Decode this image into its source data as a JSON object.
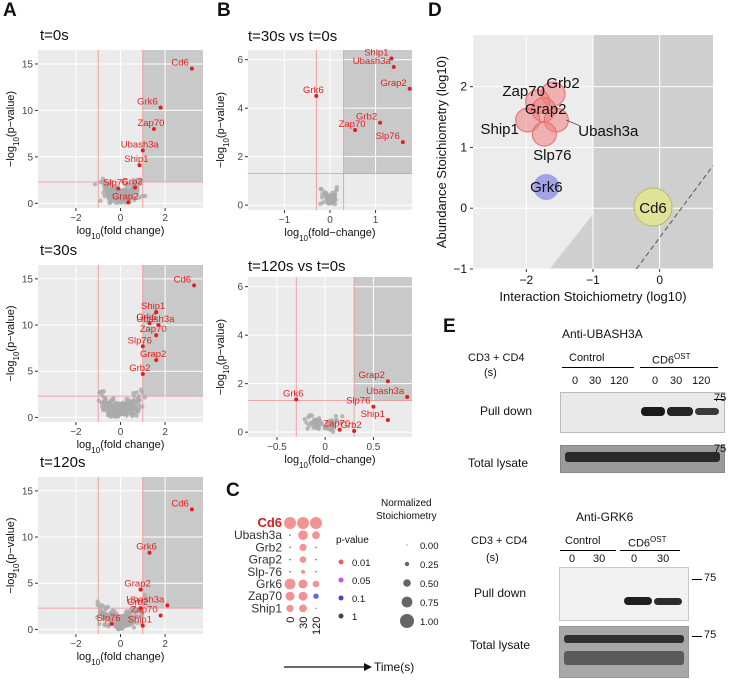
{
  "panels": {
    "A": "A",
    "B": "B",
    "C": "C",
    "D": "D",
    "E": "E"
  },
  "chart_data": [
    {
      "id": "A1",
      "type": "scatter",
      "title": "t=0s",
      "xlabel": "log10(fold change)",
      "ylabel": "−log10(p−value)",
      "xlim": [
        -3.7,
        3.7
      ],
      "ylim": [
        -0.5,
        16.5
      ],
      "xticks": [
        -2,
        0,
        2
      ],
      "yticks": [
        0,
        5,
        10,
        15
      ],
      "thresholds": {
        "x": [
          -1,
          1
        ],
        "y": 2.3
      },
      "shade": [
        1.0,
        3.7,
        2.3,
        16.5
      ],
      "labeled_points": [
        {
          "label": "Cd6",
          "x": 3.2,
          "y": 14.5
        },
        {
          "label": "Grk6",
          "x": 1.8,
          "y": 10.3
        },
        {
          "label": "Zap70",
          "x": 1.5,
          "y": 8.0
        },
        {
          "label": "Ubash3a",
          "x": 1.0,
          "y": 5.7
        },
        {
          "label": "Ship1",
          "x": 0.85,
          "y": 4.1
        },
        {
          "label": "Grb2",
          "x": 0.65,
          "y": 1.7
        },
        {
          "label": "Slp76",
          "x": -0.1,
          "y": 1.6
        },
        {
          "label": "Grap2",
          "x": 0.35,
          "y": 0.1
        }
      ]
    },
    {
      "id": "A2",
      "type": "scatter",
      "title": "t=30s",
      "xlabel": "log10(fold change)",
      "ylabel": "−log10(p−value)",
      "xlim": [
        -3.7,
        3.7
      ],
      "ylim": [
        -0.5,
        16.5
      ],
      "xticks": [
        -2,
        0,
        2
      ],
      "yticks": [
        0,
        5,
        10,
        15
      ],
      "thresholds": {
        "x": [
          -1,
          1
        ],
        "y": 2.3
      },
      "shade": [
        1.0,
        3.7,
        2.3,
        16.5
      ],
      "labeled_points": [
        {
          "label": "Cd6",
          "x": 3.3,
          "y": 14.3
        },
        {
          "label": "Ship1",
          "x": 1.6,
          "y": 11.4
        },
        {
          "label": "Grk6",
          "x": 1.3,
          "y": 10.2
        },
        {
          "label": "Ubash3a",
          "x": 1.7,
          "y": 10.0
        },
        {
          "label": "Zap70",
          "x": 1.6,
          "y": 8.9
        },
        {
          "label": "Slp76",
          "x": 1.0,
          "y": 7.7
        },
        {
          "label": "Grap2",
          "x": 1.6,
          "y": 6.2
        },
        {
          "label": "Grb2",
          "x": 1.0,
          "y": 4.7
        }
      ]
    },
    {
      "id": "A3",
      "type": "scatter",
      "title": "t=120s",
      "xlabel": "log10(fold change)",
      "ylabel": "−log10(p−value)",
      "xlim": [
        -3.7,
        3.7
      ],
      "ylim": [
        -0.5,
        16.5
      ],
      "xticks": [
        -2,
        0,
        2
      ],
      "yticks": [
        0,
        5,
        10,
        15
      ],
      "thresholds": {
        "x": [
          -1,
          1
        ],
        "y": 2.3
      },
      "shade": [
        1.0,
        3.7,
        2.3,
        16.5
      ],
      "labeled_points": [
        {
          "label": "Cd6",
          "x": 3.2,
          "y": 13.0
        },
        {
          "label": "Grk6",
          "x": 1.3,
          "y": 8.3
        },
        {
          "label": "Grap2",
          "x": 0.9,
          "y": 4.3
        },
        {
          "label": "Ubash3a",
          "x": 2.1,
          "y": 2.6
        },
        {
          "label": "Grb2",
          "x": 0.9,
          "y": 2.3
        },
        {
          "label": "Zap70",
          "x": 1.8,
          "y": 1.5
        },
        {
          "label": "Slp76",
          "x": -0.4,
          "y": 0.6
        },
        {
          "label": "Ship1",
          "x": 1.0,
          "y": 0.4
        }
      ]
    },
    {
      "id": "B1",
      "type": "scatter",
      "title": "t=30s vs t=0s",
      "xlabel": "log10(fold−change)",
      "ylabel": "−log10(p−value)",
      "xlim": [
        -1.8,
        1.8
      ],
      "ylim": [
        -0.2,
        6.4
      ],
      "xticks": [
        -1,
        0,
        1
      ],
      "yticks": [
        0,
        2,
        4,
        6
      ],
      "thresholds": {
        "x": [
          -0.3,
          0.3
        ],
        "y": 1.3
      },
      "shade": [
        0.3,
        1.8,
        1.3,
        6.4
      ],
      "labeled_points": [
        {
          "label": "Ship1",
          "x": 1.35,
          "y": 6.05
        },
        {
          "label": "Ubash3a",
          "x": 1.4,
          "y": 5.7
        },
        {
          "label": "Grap2",
          "x": 1.75,
          "y": 4.8
        },
        {
          "label": "Grk6",
          "x": -0.3,
          "y": 4.5
        },
        {
          "label": "Grb2",
          "x": 1.1,
          "y": 3.4
        },
        {
          "label": "Zap70",
          "x": 0.55,
          "y": 3.1
        },
        {
          "label": "Slp76",
          "x": 1.6,
          "y": 2.6
        }
      ]
    },
    {
      "id": "B2",
      "type": "scatter",
      "title": "t=120s vs t=0s",
      "xlabel": "log10(fold−change)",
      "ylabel": "−log10(p−value)",
      "xlim": [
        -0.8,
        0.9
      ],
      "ylim": [
        -0.2,
        6.4
      ],
      "xticks": [
        -0.5,
        0.0,
        0.5
      ],
      "yticks": [
        0,
        2,
        4,
        6
      ],
      "thresholds": {
        "x": [
          -0.3,
          0.3
        ],
        "y": 1.3
      },
      "shade": [
        0.3,
        0.9,
        1.3,
        6.4
      ],
      "labeled_points": [
        {
          "label": "Grap2",
          "x": 0.65,
          "y": 2.1
        },
        {
          "label": "Ubash3a",
          "x": 0.85,
          "y": 1.45
        },
        {
          "label": "Grk6",
          "x": -0.3,
          "y": 1.35
        },
        {
          "label": "Slp76",
          "x": 0.5,
          "y": 1.05
        },
        {
          "label": "Ship1",
          "x": 0.65,
          "y": 0.5
        },
        {
          "label": "Zap70",
          "x": 0.15,
          "y": 0.1
        },
        {
          "label": "Grb2",
          "x": 0.3,
          "y": 0.05
        }
      ]
    },
    {
      "id": "C",
      "type": "heatmap",
      "rows": [
        "Cd6",
        "Ubash3a",
        "Grb2",
        "Grap2",
        "Slp-76",
        "Grk6",
        "Zap70",
        "Ship1"
      ],
      "columns": [
        "0",
        "30",
        "120"
      ],
      "xlabel": "Time(s)",
      "stoichiometry": [
        [
          1.0,
          1.0,
          1.0
        ],
        [
          0.05,
          0.8,
          0.65
        ],
        [
          0.05,
          0.6,
          0.1
        ],
        [
          0.05,
          0.55,
          0.05
        ],
        [
          0.05,
          0.35,
          0.05
        ],
        [
          0.9,
          0.75,
          0.55
        ],
        [
          0.75,
          0.75,
          0.45
        ],
        [
          0.6,
          0.65,
          0.15
        ]
      ],
      "pvalue": [
        [
          0.01,
          0.01,
          0.01
        ],
        [
          1,
          0.01,
          0.01
        ],
        [
          1,
          0.01,
          0.1
        ],
        [
          1,
          0.01,
          1
        ],
        [
          1,
          0.01,
          1
        ],
        [
          0.01,
          0.01,
          0.01
        ],
        [
          0.01,
          0.01,
          0.1
        ],
        [
          0.01,
          0.01,
          0.01
        ]
      ],
      "legend_pvalue_title": "p-value",
      "legend_pvalue": [
        {
          "label": "0.01",
          "color": "#f06060"
        },
        {
          "label": "0.05",
          "color": "#c050f0"
        },
        {
          "label": "0.1",
          "color": "#4040e0"
        },
        {
          "label": "1",
          "color": "#444444"
        }
      ],
      "legend_size_title": "Normalized Stoichiometry",
      "legend_size": [
        "0.00",
        "0.25",
        "0.50",
        "0.75",
        "1.00"
      ]
    },
    {
      "id": "D",
      "type": "scatter",
      "xlabel": "Interaction Stoichiometry (log10)",
      "ylabel": "Abundance Stoichiometry (log10)",
      "xlim": [
        -2.8,
        0.8
      ],
      "ylim": [
        -1,
        2.85
      ],
      "xticks": [
        -2,
        -1,
        0
      ],
      "yticks": [
        -1,
        0,
        1,
        2
      ],
      "points": [
        {
          "label": "Grb2",
          "x": -1.6,
          "y": 1.88
        },
        {
          "label": "Zap70",
          "x": -1.83,
          "y": 1.75
        },
        {
          "label": "Grap2",
          "x": -1.74,
          "y": 1.62
        },
        {
          "label": "Ship1",
          "x": -1.98,
          "y": 1.45
        },
        {
          "label": "Ubash3a",
          "x": -1.55,
          "y": 1.45
        },
        {
          "label": "Slp76",
          "x": -1.73,
          "y": 1.22
        },
        {
          "label": "Grk6",
          "x": -1.7,
          "y": 0.35
        },
        {
          "label": "Cd6",
          "x": -0.1,
          "y": 0.02
        }
      ]
    }
  ],
  "blots": {
    "ubash": {
      "title": "Anti-UBASH3A",
      "treatment": "CD3 + CD4",
      "unit": "(s)",
      "groups": [
        "Control",
        "CD6"
      ],
      "superscript": "OST",
      "times": [
        "0",
        "30",
        "120",
        "0",
        "30",
        "120"
      ],
      "rows": [
        "Pull down",
        "Total lysate"
      ],
      "marker": "75"
    },
    "grk6": {
      "title": "Anti-GRK6",
      "treatment": "CD3 + CD4",
      "unit": "(s)",
      "groups": [
        "Control",
        "CD6"
      ],
      "superscript": "OST",
      "times": [
        "0",
        "30",
        "0",
        "30"
      ],
      "rows": [
        "Pull down",
        "Total lysate"
      ],
      "marker": "75"
    }
  }
}
